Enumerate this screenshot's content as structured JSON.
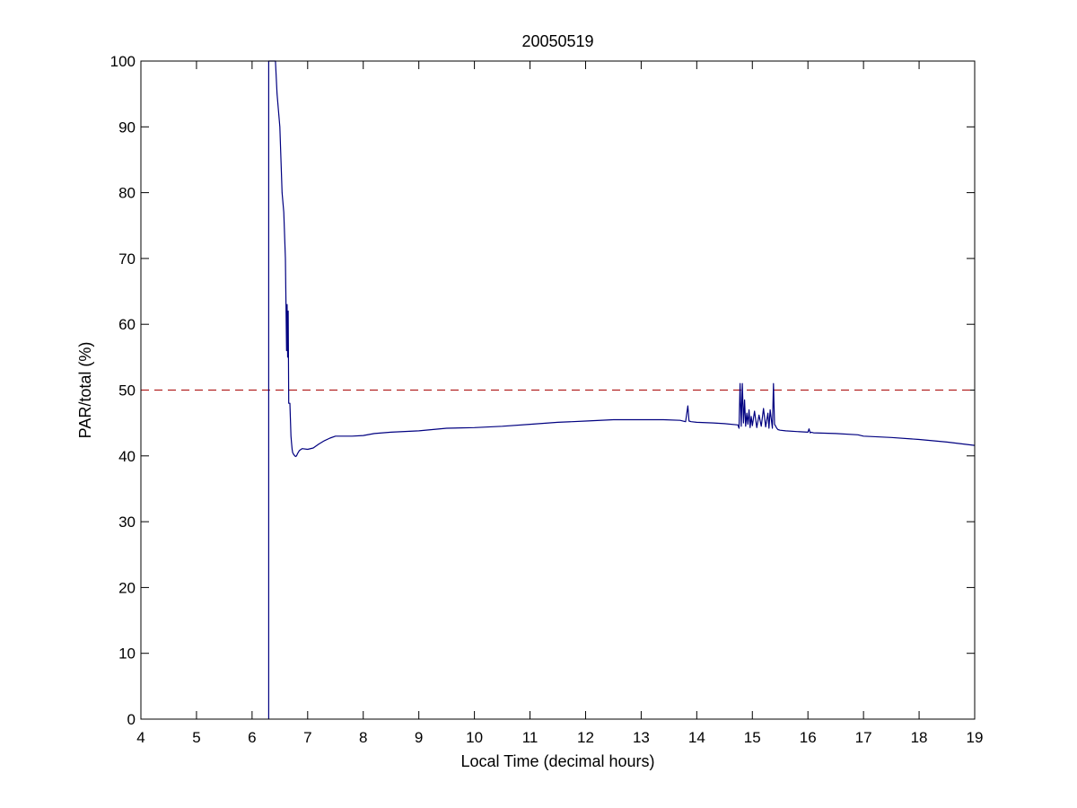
{
  "chart_data": {
    "type": "line",
    "title": "20050519",
    "xlabel": "Local Time (decimal hours)",
    "ylabel": "PAR/total (%)",
    "xlim": [
      4,
      19
    ],
    "ylim": [
      0,
      100
    ],
    "xticks": [
      "4",
      "5",
      "6",
      "7",
      "8",
      "9",
      "10",
      "11",
      "12",
      "13",
      "14",
      "15",
      "16",
      "17",
      "18",
      "19"
    ],
    "yticks": [
      "0",
      "10",
      "20",
      "30",
      "40",
      "50",
      "60",
      "70",
      "80",
      "90",
      "100"
    ],
    "grid": false,
    "reference_line": {
      "y": 50,
      "style": "dashed",
      "color": "#b22222"
    },
    "series_color": "#000080",
    "series": [
      {
        "x": [
          6.3,
          6.3,
          6.3,
          6.42,
          6.45,
          6.5,
          6.54,
          6.57,
          6.6,
          6.62,
          6.63,
          6.64,
          6.65,
          6.66,
          6.68,
          6.7,
          6.71,
          6.72,
          6.73,
          6.75,
          6.78,
          6.8,
          6.82,
          6.85,
          6.9,
          7.0,
          7.1,
          7.2,
          7.3,
          7.4,
          7.5,
          7.6,
          7.8,
          8.0,
          8.2,
          8.5,
          9.0,
          9.5,
          10.0,
          10.5,
          11.0,
          11.5,
          12.0,
          12.5,
          13.0,
          13.4,
          13.7,
          13.8,
          13.84,
          13.86,
          13.9,
          14.0,
          14.3,
          14.5,
          14.74,
          14.76,
          14.78,
          14.8,
          14.82,
          14.84,
          14.86,
          14.88,
          14.9,
          14.92,
          14.94,
          14.96,
          14.98,
          15.0,
          15.04,
          15.08,
          15.12,
          15.16,
          15.2,
          15.24,
          15.28,
          15.3,
          15.32,
          15.36,
          15.38,
          15.4,
          15.42,
          15.44,
          15.46,
          15.5,
          15.6,
          15.8,
          16.0,
          16.02,
          16.04,
          16.06,
          16.1,
          16.5,
          16.9,
          17.0,
          17.5,
          18.0,
          18.5,
          19.0
        ],
        "y": [
          0,
          100,
          100,
          100,
          95,
          90,
          80,
          77,
          70,
          56,
          63,
          55,
          62,
          48,
          48,
          43,
          42,
          41,
          40.5,
          40.2,
          39.9,
          40.0,
          40.4,
          40.8,
          41.1,
          41.0,
          41.2,
          41.8,
          42.3,
          42.7,
          43.0,
          43.0,
          43.0,
          43.1,
          43.4,
          43.6,
          43.8,
          44.2,
          44.3,
          44.5,
          44.8,
          45.1,
          45.3,
          45.5,
          45.5,
          45.5,
          45.4,
          45.2,
          47.6,
          45.3,
          45.2,
          45.1,
          45.0,
          44.9,
          44.7,
          44.2,
          51.0,
          44.5,
          51.0,
          45.0,
          48.5,
          44.5,
          46.5,
          44.8,
          47.0,
          44.3,
          46.0,
          44.6,
          46.8,
          44.3,
          46.2,
          44.5,
          47.2,
          44.4,
          46.5,
          44.2,
          47.0,
          44.2,
          51.0,
          44.8,
          44.5,
          44.2,
          44.0,
          43.9,
          43.8,
          43.7,
          43.6,
          44.1,
          43.5,
          43.6,
          43.5,
          43.4,
          43.2,
          43.0,
          42.8,
          42.5,
          42.1,
          41.6
        ]
      }
    ]
  }
}
